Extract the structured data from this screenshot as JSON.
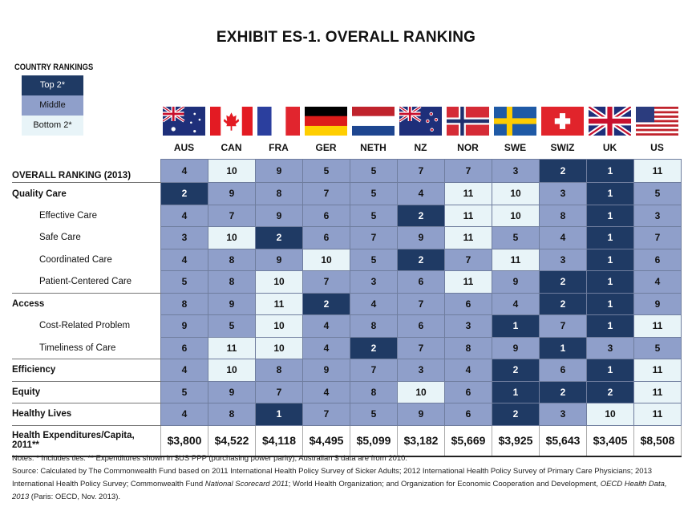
{
  "title": "EXHIBIT ES-1. OVERALL RANKING",
  "legend": {
    "title": "COUNTRY RANKINGS",
    "items": [
      "Top 2*",
      "Middle",
      "Bottom 2*"
    ]
  },
  "colors": {
    "top": "#1f3a64",
    "middle": "#8f9fca",
    "bottom": "#e8f4f8"
  },
  "countries": [
    "AUS",
    "CAN",
    "FRA",
    "GER",
    "NETH",
    "NZ",
    "NOR",
    "SWE",
    "SWIZ",
    "UK",
    "US"
  ],
  "flags": [
    "australia-flag",
    "canada-flag",
    "france-flag",
    "germany-flag",
    "netherlands-flag",
    "new-zealand-flag",
    "norway-flag",
    "sweden-flag",
    "switzerland-flag",
    "uk-flag",
    "us-flag"
  ],
  "rows": [
    {
      "label": "OVERALL RANKING (2013)",
      "kind": "overall",
      "values": [
        4,
        10,
        9,
        5,
        5,
        7,
        7,
        3,
        2,
        1,
        11
      ]
    },
    {
      "label": "Quality Care",
      "kind": "cat",
      "values": [
        2,
        9,
        8,
        7,
        5,
        4,
        11,
        10,
        3,
        1,
        5
      ]
    },
    {
      "label": "Effective Care",
      "kind": "sub",
      "values": [
        4,
        7,
        9,
        6,
        5,
        2,
        11,
        10,
        8,
        1,
        3
      ]
    },
    {
      "label": "Safe Care",
      "kind": "sub",
      "values": [
        3,
        10,
        2,
        6,
        7,
        9,
        11,
        5,
        4,
        1,
        7
      ]
    },
    {
      "label": "Coordinated Care",
      "kind": "sub",
      "values": [
        4,
        8,
        9,
        10,
        5,
        2,
        7,
        11,
        3,
        1,
        6
      ]
    },
    {
      "label": "Patient-Centered Care",
      "kind": "sub",
      "sep": true,
      "values": [
        5,
        8,
        10,
        7,
        3,
        6,
        11,
        9,
        2,
        1,
        4
      ]
    },
    {
      "label": "Access",
      "kind": "cat",
      "values": [
        8,
        9,
        11,
        2,
        4,
        7,
        6,
        4,
        2,
        1,
        9
      ]
    },
    {
      "label": "Cost-Related Problem",
      "kind": "sub",
      "values": [
        9,
        5,
        10,
        4,
        8,
        6,
        3,
        1,
        7,
        1,
        11
      ]
    },
    {
      "label": "Timeliness of Care",
      "kind": "sub",
      "sep": true,
      "values": [
        6,
        11,
        10,
        4,
        2,
        7,
        8,
        9,
        1,
        3,
        5
      ]
    },
    {
      "label": "Efficiency",
      "kind": "cat",
      "sep": true,
      "values": [
        4,
        10,
        8,
        9,
        7,
        3,
        4,
        2,
        6,
        1,
        11
      ]
    },
    {
      "label": "Equity",
      "kind": "cat",
      "sep": true,
      "values": [
        5,
        9,
        7,
        4,
        8,
        10,
        6,
        1,
        2,
        2,
        11
      ]
    },
    {
      "label": "Healthy Lives",
      "kind": "cat",
      "sep": true,
      "values": [
        4,
        8,
        1,
        7,
        5,
        9,
        6,
        2,
        3,
        10,
        11
      ]
    }
  ],
  "expenditures": {
    "label": "Health Expenditures/Capita, 2011**",
    "values": [
      "$3,800",
      "$4,522",
      "$4,118",
      "$4,495",
      "$5,099",
      "$3,182",
      "$5,669",
      "$3,925",
      "$5,643",
      "$3,405",
      "$8,508"
    ]
  },
  "notes": {
    "line1": "Notes: * Includes ties. ** Expenditures shown in $US PPP (purchasing power parity); Australian $ data are from 2010.",
    "source_a": "Source: Calculated by The Commonwealth Fund based on 2011 International Health Policy Survey of Sicker Adults; 2012 International Health Policy Survey of Primary Care Physicians; 2013 International Health Policy Survey; Commonwealth Fund ",
    "source_b": "National Scorecard 2011",
    "source_c": "; World Health Organization; and Organization for Economic Cooperation and Development, ",
    "source_d": "OECD Health Data, 2013",
    "source_e": " (Paris: OECD, Nov. 2013)."
  }
}
